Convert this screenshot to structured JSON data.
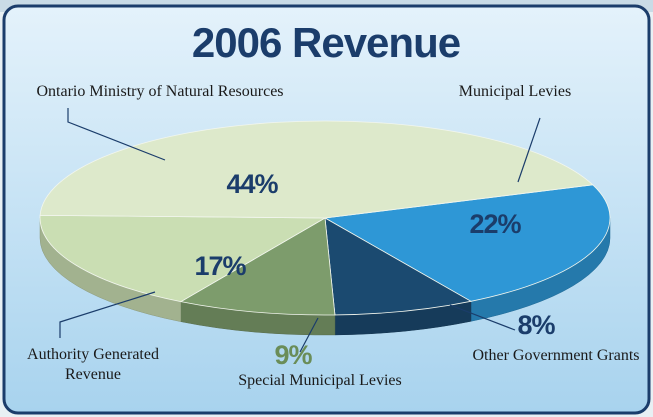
{
  "chart_data": {
    "type": "pie3d",
    "title": "2006 Revenue",
    "categories": [
      "Municipal Levies",
      "Other Government Grants",
      "Special Municipal Levies",
      "Authority Generated Revenue",
      "Ontario Ministry of Natural Resources"
    ],
    "values": [
      22,
      8,
      9,
      17,
      44
    ],
    "value_labels": [
      "22%",
      "8%",
      "9%",
      "17%",
      "44%"
    ],
    "colors": [
      "#2e97d6",
      "#1b4a70",
      "#7d9c6c",
      "#cadeb3",
      "#dde9cb"
    ]
  }
}
